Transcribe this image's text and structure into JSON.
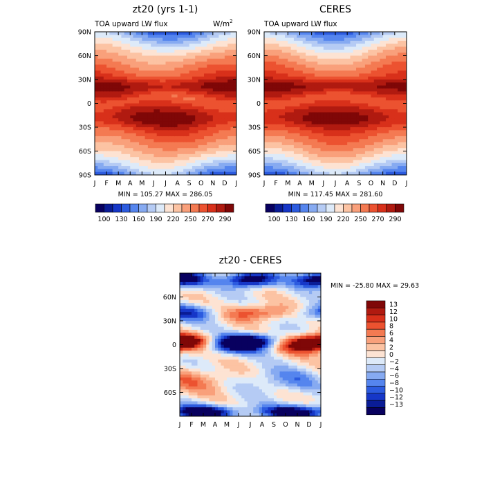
{
  "panels": [
    {
      "title": "zt20 (yrs 1-1)",
      "subtitle_left": "TOA upward LW flux",
      "units": "W/m",
      "units_sup": "2",
      "stats": "MIN = 105.27 MAX = 286.05"
    },
    {
      "title": "CERES",
      "subtitle_left": "TOA upward LW flux",
      "stats": "MIN = 117.45 MAX = 281.60"
    },
    {
      "title": "zt20 - CERES",
      "stats": "MIN = -25.80 MAX =  29.63"
    }
  ],
  "colors": {
    "abs_scale": [
      "#08005f",
      "#0a1c96",
      "#1637c8",
      "#2c5bdf",
      "#5585ee",
      "#86aaf1",
      "#b5cbf4",
      "#ddeaf9",
      "#fde3d3",
      "#fcc3a3",
      "#f9a07b",
      "#f47a52",
      "#ec5230",
      "#d8301a",
      "#b01a10",
      "#7f0707"
    ],
    "diff_scale": [
      "#08005f",
      "#0a1c96",
      "#1637c8",
      "#2c5bdf",
      "#5585ee",
      "#86aaf1",
      "#b5cbf4",
      "#ddeaf9",
      "#fde3d3",
      "#fcc3a3",
      "#f9a07b",
      "#f47a52",
      "#ec5230",
      "#d8301a",
      "#b01a10",
      "#7f0707"
    ]
  },
  "chart_data": [
    {
      "type": "heatmap",
      "title": "zt20 (yrs 1-1)",
      "subtitle": "TOA upward LW flux",
      "units": "W/m2",
      "x_ticks": [
        "J",
        "F",
        "M",
        "A",
        "M",
        "J",
        "J",
        "A",
        "S",
        "O",
        "N",
        "D",
        "J"
      ],
      "y_ticks": [
        "90N",
        "60N",
        "30N",
        "0",
        "30S",
        "60S",
        "90S"
      ],
      "ylim": [
        -90,
        90
      ],
      "levels": [
        100,
        130,
        160,
        190,
        220,
        250,
        270,
        290
      ],
      "colorbar_labels": [
        "100",
        "130",
        "160",
        "190",
        "220",
        "250",
        "270",
        "290"
      ],
      "min": 105.27,
      "max": 286.05
    },
    {
      "type": "heatmap",
      "title": "CERES",
      "subtitle": "TOA upward LW flux",
      "x_ticks": [
        "J",
        "F",
        "M",
        "A",
        "M",
        "J",
        "J",
        "A",
        "S",
        "O",
        "N",
        "D",
        "J"
      ],
      "y_ticks": [
        "90N",
        "60N",
        "30N",
        "0",
        "30S",
        "60S",
        "90S"
      ],
      "ylim": [
        -90,
        90
      ],
      "levels": [
        100,
        130,
        160,
        190,
        220,
        250,
        270,
        290
      ],
      "colorbar_labels": [
        "100",
        "130",
        "160",
        "190",
        "220",
        "250",
        "270",
        "290"
      ],
      "min": 117.45,
      "max": 281.6
    },
    {
      "type": "heatmap",
      "title": "zt20 - CERES",
      "x_ticks": [
        "J",
        "F",
        "M",
        "A",
        "M",
        "J",
        "J",
        "A",
        "S",
        "O",
        "N",
        "D",
        "J"
      ],
      "y_ticks": [
        "60N",
        "30N",
        "0",
        "30S",
        "60S"
      ],
      "ylim": [
        -90,
        90
      ],
      "levels": [
        -13,
        -12,
        -10,
        -8,
        -6,
        -4,
        -2,
        0,
        2,
        4,
        6,
        8,
        10,
        12,
        13
      ],
      "colorbar_labels": [
        "13",
        "12",
        "10",
        "8",
        "6",
        "4",
        "2",
        "0",
        "−2",
        "−4",
        "−6",
        "−8",
        "−10",
        "−12",
        "−13"
      ],
      "min": -25.8,
      "max": 29.63
    }
  ]
}
